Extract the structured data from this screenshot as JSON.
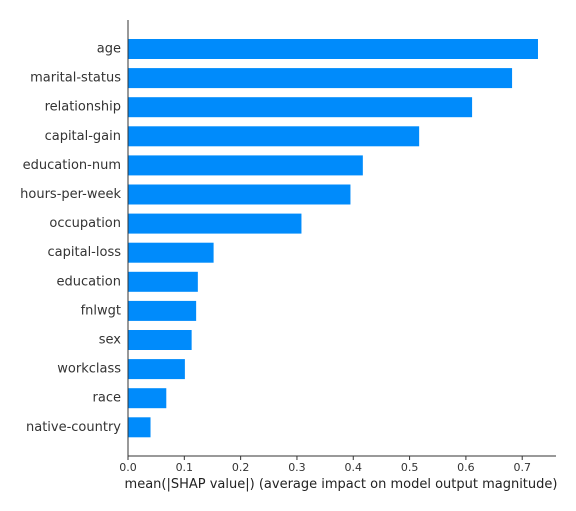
{
  "chart_data": {
    "type": "bar",
    "orientation": "horizontal",
    "categories": [
      "age",
      "marital-status",
      "relationship",
      "capital-gain",
      "education-num",
      "hours-per-week",
      "occupation",
      "capital-loss",
      "education",
      "fnlwgt",
      "sex",
      "workclass",
      "race",
      "native-country"
    ],
    "values": [
      0.728,
      0.682,
      0.611,
      0.517,
      0.417,
      0.395,
      0.308,
      0.152,
      0.124,
      0.121,
      0.113,
      0.101,
      0.068,
      0.04
    ],
    "xlabel": "mean(|SHAP value|) (average impact on model output magnitude)",
    "ylabel": "",
    "xlim": [
      0,
      0.76
    ],
    "xticks": [
      0.0,
      0.1,
      0.2,
      0.3,
      0.4,
      0.5,
      0.6,
      0.7
    ],
    "xtick_labels": [
      "0.0",
      "0.1",
      "0.2",
      "0.3",
      "0.4",
      "0.5",
      "0.6",
      "0.7"
    ],
    "bar_color": "#008bfb",
    "grid": false
  }
}
